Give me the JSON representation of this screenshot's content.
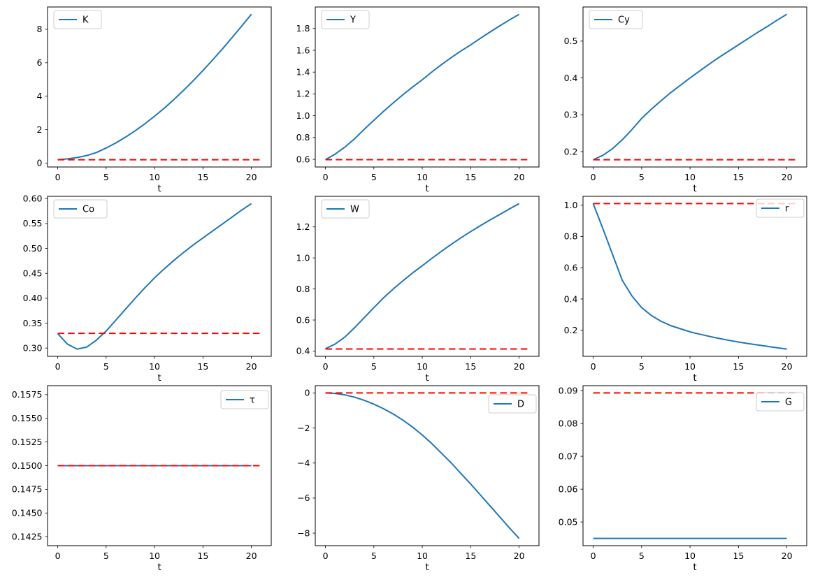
{
  "figure": {
    "background": "#ffffff"
  },
  "style": {
    "series_color": "#1f77b4",
    "steady_color": "#ff0000",
    "axis_color": "#000000",
    "tick_label_color": "#000000",
    "legend_border": "#cccccc",
    "legend_background": "#ffffff"
  },
  "chart_data": [
    {
      "type": "line",
      "name": "K",
      "xlabel": "t",
      "legend": {
        "label": "K",
        "loc": "upper left",
        "dy": 5
      },
      "xlim": [
        -1.05,
        22.05
      ],
      "ylim": [
        -0.235,
        9.335
      ],
      "xticks": [
        0,
        5,
        10,
        15,
        20
      ],
      "xtick_labels": [
        "0",
        "5",
        "10",
        "15",
        "20"
      ],
      "yticks": [
        0,
        2,
        4,
        6,
        8
      ],
      "ytick_labels": [
        "0",
        "2",
        "4",
        "6",
        "8"
      ],
      "series": [
        {
          "name": "K",
          "role": "path",
          "x": [
            0,
            1,
            2,
            3,
            4,
            5,
            6,
            7,
            8,
            9,
            10,
            11,
            12,
            13,
            14,
            15,
            16,
            17,
            18,
            19,
            20
          ],
          "y": [
            0.2,
            0.25,
            0.33,
            0.45,
            0.63,
            0.9,
            1.2,
            1.55,
            1.93,
            2.35,
            2.8,
            3.28,
            3.8,
            4.35,
            4.93,
            5.54,
            6.17,
            6.82,
            7.5,
            8.19,
            8.9
          ]
        },
        {
          "name": "K steady state",
          "role": "steady",
          "x": [
            0,
            21
          ],
          "y": [
            0.2,
            0.2
          ]
        }
      ]
    },
    {
      "type": "line",
      "name": "Y",
      "xlabel": "t",
      "legend": {
        "label": "Y",
        "loc": "upper left",
        "dy": 5
      },
      "xlim": [
        -1.05,
        22.05
      ],
      "ylim": [
        0.53,
        1.997
      ],
      "xticks": [
        0,
        5,
        10,
        15,
        20
      ],
      "xtick_labels": [
        "0",
        "5",
        "10",
        "15",
        "20"
      ],
      "yticks": [
        0.6,
        0.8,
        1.0,
        1.2,
        1.4,
        1.6,
        1.8
      ],
      "ytick_labels": [
        "0.6",
        "0.8",
        "1.0",
        "1.2",
        "1.4",
        "1.6",
        "1.8"
      ],
      "series": [
        {
          "name": "Y",
          "role": "path",
          "x": [
            0,
            1,
            2,
            3,
            4,
            5,
            6,
            7,
            8,
            9,
            10,
            11,
            12,
            13,
            14,
            15,
            16,
            17,
            18,
            19,
            20
          ],
          "y": [
            0.597,
            0.648,
            0.712,
            0.788,
            0.875,
            0.958,
            1.04,
            1.118,
            1.192,
            1.263,
            1.33,
            1.402,
            1.47,
            1.534,
            1.594,
            1.65,
            1.71,
            1.768,
            1.824,
            1.878,
            1.93
          ]
        },
        {
          "name": "Y steady state",
          "role": "steady",
          "x": [
            0,
            21
          ],
          "y": [
            0.597,
            0.597
          ]
        }
      ]
    },
    {
      "type": "line",
      "name": "Cy",
      "xlabel": "t",
      "legend": {
        "label": "Cy",
        "loc": "upper left",
        "dy": 5
      },
      "xlim": [
        -1.05,
        22.05
      ],
      "ylim": [
        0.1583,
        0.5927
      ],
      "xticks": [
        0,
        5,
        10,
        15,
        20
      ],
      "xtick_labels": [
        "0",
        "5",
        "10",
        "15",
        "20"
      ],
      "yticks": [
        0.2,
        0.3,
        0.4,
        0.5
      ],
      "ytick_labels": [
        "0.2",
        "0.3",
        "0.4",
        "0.5"
      ],
      "series": [
        {
          "name": "Cy",
          "role": "path",
          "x": [
            0,
            1,
            2,
            3,
            4,
            5,
            6,
            7,
            8,
            9,
            10,
            11,
            12,
            13,
            14,
            15,
            16,
            17,
            18,
            19,
            20
          ],
          "y": [
            0.178,
            0.19,
            0.208,
            0.232,
            0.26,
            0.29,
            0.315,
            0.338,
            0.36,
            0.38,
            0.4,
            0.419,
            0.438,
            0.456,
            0.473,
            0.49,
            0.507,
            0.524,
            0.54,
            0.557,
            0.573
          ]
        },
        {
          "name": "Cy steady state",
          "role": "steady",
          "x": [
            0,
            21
          ],
          "y": [
            0.178,
            0.178
          ]
        }
      ]
    },
    {
      "type": "line",
      "name": "Co",
      "xlabel": "t",
      "legend": {
        "label": "Co",
        "loc": "upper left",
        "dy": 5
      },
      "xlim": [
        -1.05,
        22.05
      ],
      "ylim": [
        0.2834,
        0.6046
      ],
      "xticks": [
        0,
        5,
        10,
        15,
        20
      ],
      "xtick_labels": [
        "0",
        "5",
        "10",
        "15",
        "20"
      ],
      "yticks": [
        0.3,
        0.35,
        0.4,
        0.45,
        0.5,
        0.55,
        0.6
      ],
      "ytick_labels": [
        "0.30",
        "0.35",
        "0.40",
        "0.45",
        "0.50",
        "0.55",
        "0.60"
      ],
      "series": [
        {
          "name": "Co",
          "role": "path",
          "x": [
            0,
            1,
            2,
            3,
            4,
            5,
            6,
            7,
            8,
            9,
            10,
            11,
            12,
            13,
            14,
            15,
            16,
            17,
            18,
            19,
            20
          ],
          "y": [
            0.329,
            0.308,
            0.298,
            0.302,
            0.316,
            0.334,
            0.356,
            0.378,
            0.4,
            0.421,
            0.441,
            0.459,
            0.476,
            0.492,
            0.507,
            0.521,
            0.535,
            0.549,
            0.563,
            0.577,
            0.59
          ]
        },
        {
          "name": "Co steady state",
          "role": "steady",
          "x": [
            0,
            21
          ],
          "y": [
            0.3295,
            0.3295
          ]
        }
      ]
    },
    {
      "type": "line",
      "name": "W",
      "xlabel": "t",
      "legend": {
        "label": "W",
        "loc": "upper left",
        "dy": 5
      },
      "xlim": [
        -1.05,
        22.05
      ],
      "ylim": [
        0.366,
        1.397
      ],
      "xticks": [
        0,
        5,
        10,
        15,
        20
      ],
      "xtick_labels": [
        "0",
        "5",
        "10",
        "15",
        "20"
      ],
      "yticks": [
        0.4,
        0.6,
        0.8,
        1.0,
        1.2
      ],
      "ytick_labels": [
        "0.4",
        "0.6",
        "0.8",
        "1.0",
        "1.2"
      ],
      "series": [
        {
          "name": "W",
          "role": "path",
          "x": [
            0,
            1,
            2,
            3,
            4,
            5,
            6,
            7,
            8,
            9,
            10,
            11,
            12,
            13,
            14,
            15,
            16,
            17,
            18,
            19,
            20
          ],
          "y": [
            0.415,
            0.445,
            0.49,
            0.55,
            0.615,
            0.68,
            0.743,
            0.8,
            0.853,
            0.903,
            0.95,
            0.998,
            1.044,
            1.088,
            1.13,
            1.17,
            1.208,
            1.245,
            1.28,
            1.316,
            1.35
          ]
        },
        {
          "name": "W steady state",
          "role": "steady",
          "x": [
            0,
            21
          ],
          "y": [
            0.413,
            0.413
          ]
        }
      ]
    },
    {
      "type": "line",
      "name": "r",
      "xlabel": "t",
      "legend": {
        "label": "r",
        "loc": "upper right",
        "dy": 4
      },
      "xlim": [
        -1.05,
        22.05
      ],
      "ylim": [
        0.0335,
        1.0565
      ],
      "xticks": [
        0,
        5,
        10,
        15,
        20
      ],
      "xtick_labels": [
        "0",
        "5",
        "10",
        "15",
        "20"
      ],
      "yticks": [
        0.2,
        0.4,
        0.6,
        0.8,
        1.0
      ],
      "ytick_labels": [
        "0.2",
        "0.4",
        "0.6",
        "0.8",
        "1.0"
      ],
      "series": [
        {
          "name": "r",
          "role": "path",
          "x": [
            0,
            1,
            2,
            3,
            4,
            5,
            6,
            7,
            8,
            9,
            10,
            11,
            12,
            13,
            14,
            15,
            16,
            17,
            18,
            19,
            20
          ],
          "y": [
            1.01,
            0.85,
            0.685,
            0.52,
            0.42,
            0.345,
            0.295,
            0.258,
            0.23,
            0.21,
            0.19,
            0.175,
            0.161,
            0.148,
            0.136,
            0.125,
            0.115,
            0.106,
            0.097,
            0.088,
            0.08
          ]
        },
        {
          "name": "r steady state",
          "role": "steady",
          "x": [
            0,
            21
          ],
          "y": [
            1.01,
            1.01
          ]
        }
      ]
    },
    {
      "type": "line",
      "name": "τ",
      "xlabel": "t",
      "legend": {
        "label": "τ",
        "loc": "upper right",
        "dy": 7
      },
      "xlim": [
        -1.05,
        22.05
      ],
      "ylim": [
        0.14155,
        0.15845
      ],
      "xticks": [
        0,
        5,
        10,
        15,
        20
      ],
      "xtick_labels": [
        "0",
        "5",
        "10",
        "15",
        "20"
      ],
      "yticks": [
        0.1425,
        0.145,
        0.1475,
        0.15,
        0.1525,
        0.155,
        0.1575
      ],
      "ytick_labels": [
        "0.1425",
        "0.1450",
        "0.1475",
        "0.1500",
        "0.1525",
        "0.1550",
        "0.1575"
      ],
      "series": [
        {
          "name": "τ",
          "role": "path",
          "x": [
            0,
            20
          ],
          "y": [
            0.15,
            0.15
          ]
        },
        {
          "name": "τ steady state",
          "role": "steady",
          "x": [
            0,
            21
          ],
          "y": [
            0.15,
            0.15
          ]
        }
      ]
    },
    {
      "type": "line",
      "name": "D",
      "xlabel": "t",
      "legend": {
        "label": "D",
        "loc": "upper right",
        "dy": 13
      },
      "xlim": [
        -1.05,
        22.05
      ],
      "ylim": [
        -8.715,
        0.415
      ],
      "xticks": [
        0,
        5,
        10,
        15,
        20
      ],
      "xtick_labels": [
        "0",
        "5",
        "10",
        "15",
        "20"
      ],
      "yticks": [
        0,
        -2,
        -4,
        -6,
        -8
      ],
      "ytick_labels": [
        "0",
        "−2",
        "−4",
        "−6",
        "−8"
      ],
      "series": [
        {
          "name": "D",
          "role": "path",
          "x": [
            0,
            1,
            2,
            3,
            4,
            5,
            6,
            7,
            8,
            9,
            10,
            11,
            12,
            13,
            14,
            15,
            16,
            17,
            18,
            19,
            20
          ],
          "y": [
            0.0,
            -0.03,
            -0.11,
            -0.24,
            -0.42,
            -0.64,
            -0.9,
            -1.2,
            -1.55,
            -1.95,
            -2.4,
            -2.9,
            -3.45,
            -4.0,
            -4.6,
            -5.2,
            -5.82,
            -6.45,
            -7.07,
            -7.7,
            -8.3
          ]
        },
        {
          "name": "D steady state",
          "role": "steady",
          "x": [
            0,
            21
          ],
          "y": [
            0.0,
            0.0
          ]
        }
      ]
    },
    {
      "type": "line",
      "name": "G",
      "xlabel": "t",
      "legend": {
        "label": "G",
        "loc": "upper right",
        "dy": 10
      },
      "xlim": [
        -1.05,
        22.05
      ],
      "ylim": [
        0.0428,
        0.0915
      ],
      "xticks": [
        0,
        5,
        10,
        15,
        20
      ],
      "xtick_labels": [
        "0",
        "5",
        "10",
        "15",
        "20"
      ],
      "yticks": [
        0.05,
        0.06,
        0.07,
        0.08,
        0.09
      ],
      "ytick_labels": [
        "0.05",
        "0.06",
        "0.07",
        "0.08",
        "0.09"
      ],
      "series": [
        {
          "name": "G",
          "role": "path",
          "x": [
            0,
            20
          ],
          "y": [
            0.045,
            0.045
          ]
        },
        {
          "name": "G steady state",
          "role": "steady",
          "x": [
            0,
            21
          ],
          "y": [
            0.0893,
            0.0893
          ]
        }
      ]
    }
  ]
}
